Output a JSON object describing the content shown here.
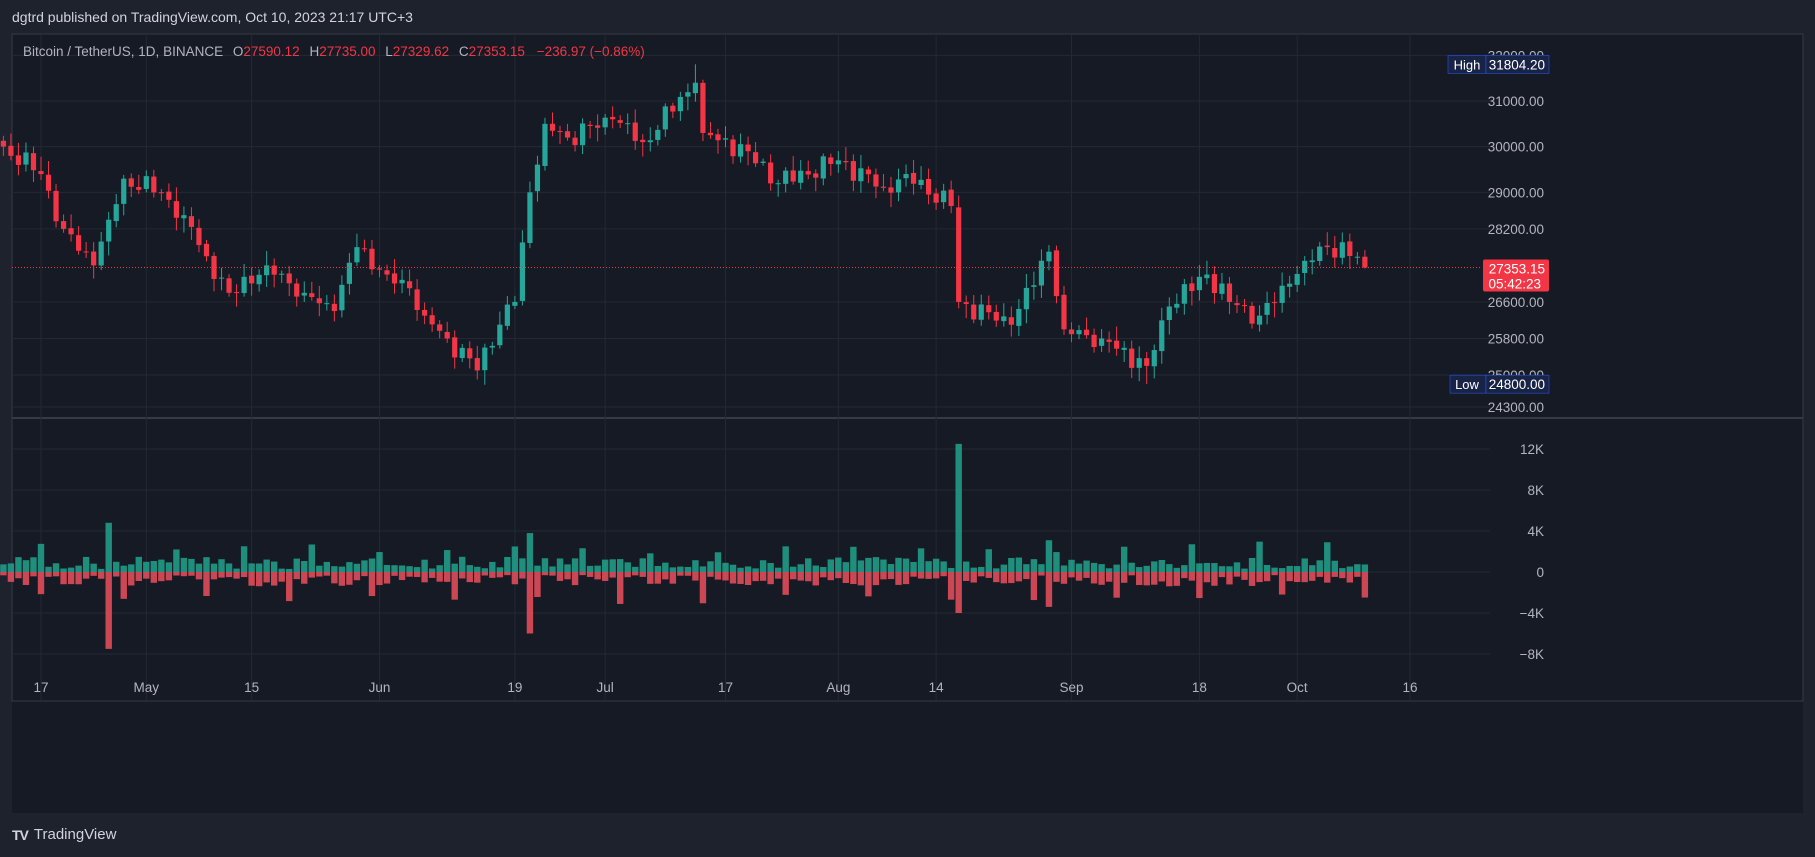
{
  "header": {
    "published_text": "dgtrd published on TradingView.com, Oct 10, 2023 21:17 UTC+3"
  },
  "legend": {
    "symbol": "Bitcoin / TetherUS, 1D, BINANCE",
    "o_label": "O",
    "o_value": "27590.12",
    "h_label": "H",
    "h_value": "27735.00",
    "l_label": "L",
    "l_value": "27329.62",
    "c_label": "C",
    "c_value": "27353.15",
    "change": "−236.97 (−0.86%)"
  },
  "price_axis": {
    "ticks": [
      "32000.00",
      "31000.00",
      "30000.00",
      "29000.00",
      "28200.00",
      "26600.00",
      "25800.00",
      "25000.00",
      "24300.00"
    ],
    "high_label": "High",
    "high_value": "31804.20",
    "low_label": "Low",
    "low_value": "24800.00",
    "last_price": "27353.15",
    "countdown": "05:42:23"
  },
  "volume_axis": {
    "ticks": [
      "12K",
      "8K",
      "4K",
      "0",
      "−4K",
      "−8K"
    ]
  },
  "time_axis": {
    "ticks": [
      "17",
      "May",
      "15",
      "Jun",
      "19",
      "Jul",
      "17",
      "Aug",
      "14",
      "Sep",
      "18",
      "Oct",
      "16"
    ]
  },
  "footer": {
    "brand": "TradingView",
    "logo_text": "TV"
  },
  "colors": {
    "up": "#26a69a",
    "down": "#f23645",
    "vol_up": "#22ab94",
    "vol_down": "#f7525f",
    "background": "#161a25",
    "grid": "#242833"
  },
  "chart_data": {
    "type": "candlestick",
    "symbol": "BTCUSDT",
    "ylim": [
      24300,
      32200
    ],
    "anchors": [
      {
        "date": "Apr 12",
        "close": 30000
      },
      {
        "date": "Apr 17",
        "close": 29400
      },
      {
        "date": "Apr 20",
        "close": 28200
      },
      {
        "date": "Apr 24",
        "close": 27400
      },
      {
        "date": "Apr 26",
        "close": 28400
      },
      {
        "date": "Apr 28",
        "close": 29300
      },
      {
        "date": "May 3",
        "close": 29000
      },
      {
        "date": "May 6",
        "close": 28500
      },
      {
        "date": "May 9",
        "close": 27600
      },
      {
        "date": "May 12",
        "close": 26800
      },
      {
        "date": "May 17",
        "close": 27400
      },
      {
        "date": "May 22",
        "close": 26800
      },
      {
        "date": "May 26",
        "close": 26400
      },
      {
        "date": "May 29",
        "close": 27800
      },
      {
        "date": "Jun 2",
        "close": 27200
      },
      {
        "date": "Jun 5",
        "close": 26900
      },
      {
        "date": "Jun 7",
        "close": 26300
      },
      {
        "date": "Jun 10",
        "close": 25800
      },
      {
        "date": "Jun 14",
        "close": 25100
      },
      {
        "date": "Jun 15",
        "close": 25600
      },
      {
        "date": "Jun 19",
        "close": 26600
      },
      {
        "date": "Jun 21",
        "close": 29000
      },
      {
        "date": "Jun 23",
        "close": 30500
      },
      {
        "date": "Jun 26",
        "close": 30200
      },
      {
        "date": "Jul 2",
        "close": 30600
      },
      {
        "date": "Jul 6",
        "close": 30100
      },
      {
        "date": "Jul 13",
        "close": 31400
      },
      {
        "date": "Jul 14",
        "close": 30300
      },
      {
        "date": "Jul 20",
        "close": 29900
      },
      {
        "date": "Jul 24",
        "close": 29200
      },
      {
        "date": "Aug 1",
        "close": 29700
      },
      {
        "date": "Aug 7",
        "close": 29100
      },
      {
        "date": "Aug 10",
        "close": 29400
      },
      {
        "date": "Aug 16",
        "close": 28700
      },
      {
        "date": "Aug 17",
        "close": 26600
      },
      {
        "date": "Aug 24",
        "close": 26100
      },
      {
        "date": "Aug 29",
        "close": 27700
      },
      {
        "date": "Aug 31",
        "close": 26000
      },
      {
        "date": "Sep 5",
        "close": 25800
      },
      {
        "date": "Sep 11",
        "close": 25200
      },
      {
        "date": "Sep 14",
        "close": 26500
      },
      {
        "date": "Sep 19",
        "close": 27200
      },
      {
        "date": "Sep 22",
        "close": 26600
      },
      {
        "date": "Sep 26",
        "close": 26300
      },
      {
        "date": "Sep 30",
        "close": 27000
      },
      {
        "date": "Oct 2",
        "close": 27500
      },
      {
        "date": "Oct 5",
        "close": 27800
      },
      {
        "date": "Oct 9",
        "close": 27590
      },
      {
        "date": "Oct 10",
        "close": 27353
      }
    ],
    "high": 31804.2,
    "low": 24800.0,
    "last": {
      "open": 27590.12,
      "high": 27735.0,
      "low": 27329.62,
      "close": 27353.15
    },
    "volume_spike": {
      "date": "Aug 17",
      "value": 12500
    }
  }
}
